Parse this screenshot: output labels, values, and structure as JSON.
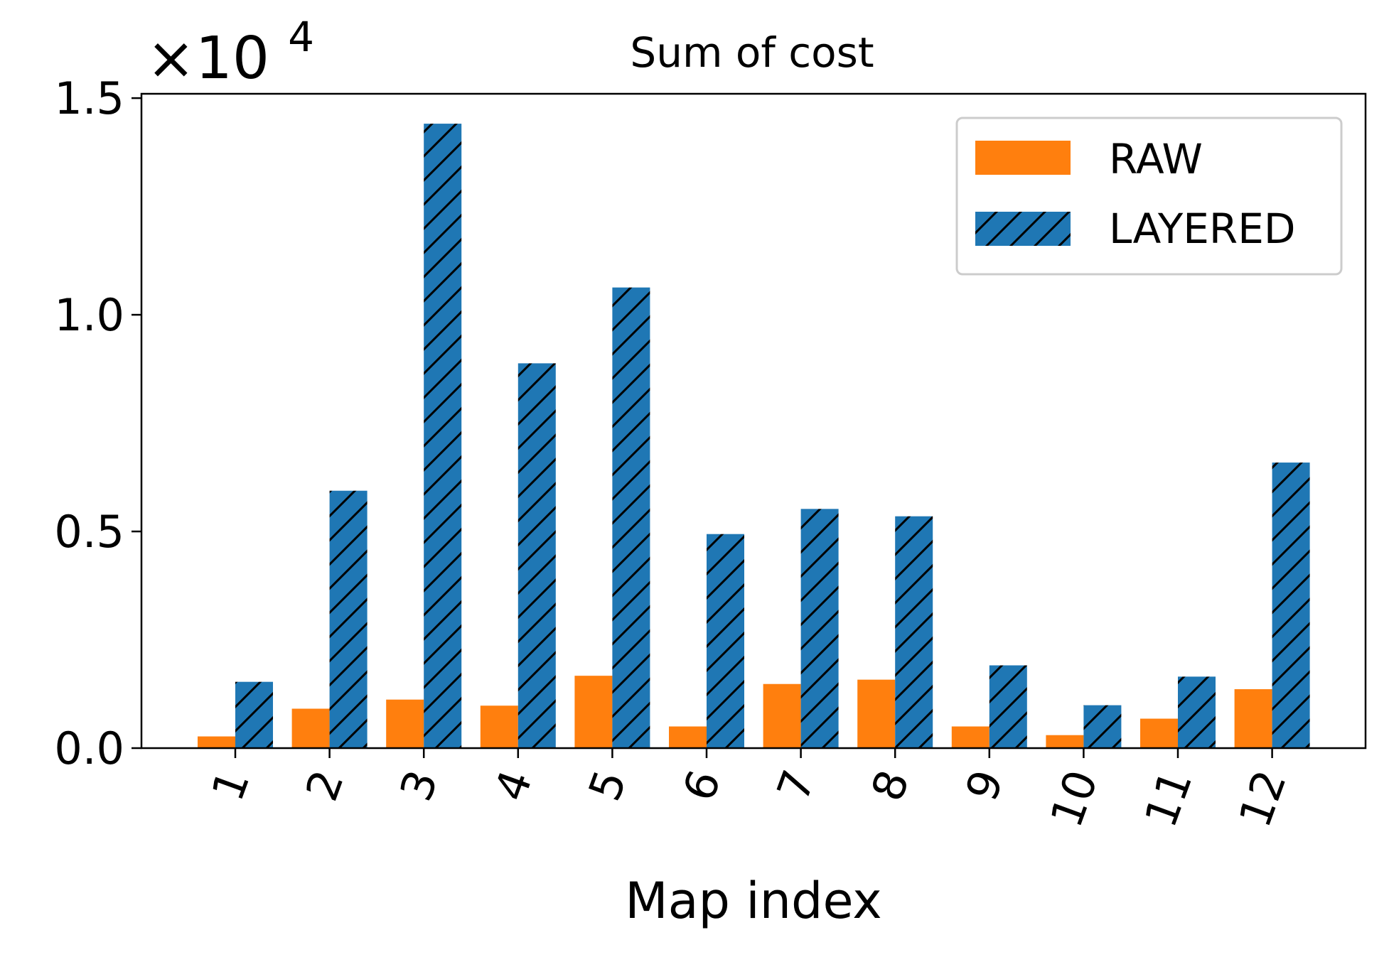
{
  "chart_data": {
    "type": "bar",
    "title": "Sum of cost",
    "xlabel": "Map index",
    "ylabel": "",
    "y_multiplier_label": "×10",
    "y_multiplier_exponent": "4",
    "categories": [
      "1",
      "2",
      "3",
      "4",
      "5",
      "6",
      "7",
      "8",
      "9",
      "10",
      "11",
      "12"
    ],
    "yticks": [
      "0.0",
      "0.5",
      "1.0",
      "1.5"
    ],
    "ylim": [
      0,
      1.51
    ],
    "y_scale_factor": 10000,
    "grid": false,
    "legend_position": "top-right",
    "series": [
      {
        "name": "RAW",
        "color": "#ff7f0e",
        "hatch": false,
        "values": [
          0.027,
          0.091,
          0.112,
          0.098,
          0.167,
          0.05,
          0.148,
          0.158,
          0.05,
          0.03,
          0.068,
          0.136
        ]
      },
      {
        "name": "LAYERED",
        "color": "#1f77b4",
        "hatch": true,
        "values": [
          0.153,
          0.594,
          1.441,
          0.888,
          1.063,
          0.494,
          0.552,
          0.535,
          0.191,
          0.099,
          0.165,
          0.659
        ]
      }
    ]
  }
}
